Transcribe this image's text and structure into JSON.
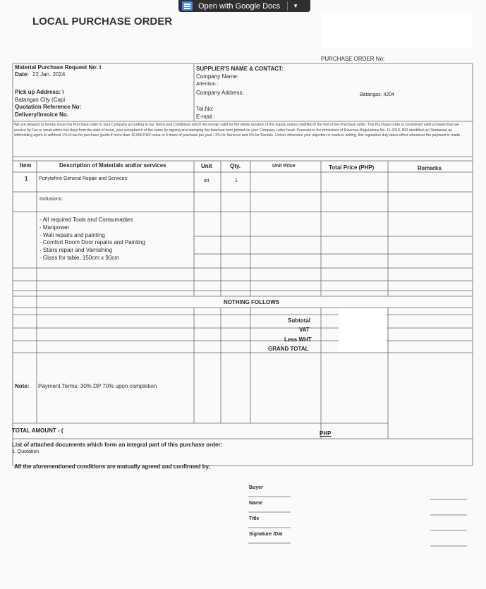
{
  "toolbar": {
    "open_with_label": "Open with Google Docs",
    "docs_icon": "google-docs-icon",
    "dropdown_icon": "caret-down-icon"
  },
  "document": {
    "title": "LOCAL PURCHASE ORDER",
    "po_no_label": "PURCHASE ORDER No:",
    "left": {
      "mpr_label": "Material Purchase Request No: I",
      "date_label": "Date:",
      "date_value": "22 Jan. 2024",
      "pickup_label": "Pick up Address: \\",
      "pickup_value": "Batangas City (Capi",
      "quotation_ref_label": "Quotation Reference No:",
      "delivery_label": "Delivery/Invoice No."
    },
    "supplier": {
      "heading": "SUPPLIER'S NAME & CONTACT:",
      "company_name": "Company Name:",
      "attention": "Attention :",
      "company_address": "Company Address:",
      "address_value": "Batangas, 4204",
      "tel": "Tel.No:",
      "email": "E-mail :"
    },
    "terms": "We are pleased to hereby issue this Purchase order to your Company according to our Terms and Conditions which will remain valid for the whole duration of the supply unless modified in the text of the Purchase order. This Purchase order is considered valid provided that we receive by Fax or email within two days from the date of issue, your acceptance of the same by signing and stamping the attached form printed on your Company Letter head. Pursuant to the provisions of Revenue Regulations No. 11-2018, BIR identified us (Ventanas) as withholding agent to withhold 1% of tax for purchase goods if more than 10,000 PHP value or 6 times of purchase per year / 2% for Services and 5% for Rentals. Unless otherwise your objection is made in writing, this regulation duly takes effect whenever the payment is made.",
    "table": {
      "headers": [
        "Item",
        "Description of Materials and/or services",
        "Unit",
        "Qty.",
        "Unit Price",
        "Total Price (PHP)",
        "Remarks"
      ],
      "row1": {
        "item": "1",
        "description": "Ponytefino General Repair and Services",
        "unit": "lot",
        "qty": "1"
      },
      "inclusions_label": "Inclusions:",
      "inclusions": [
        "- All required Tools and Consumables",
        "- Manpower",
        "- Wall repairs and painting",
        "- Comfort Room Door repairs and Painting",
        "- Stairs repair and Varnishing",
        "- Glass for table, 150cm x 90cm"
      ],
      "nothing_follows": "NOTHING FOLLOWS",
      "subtotal": "Subtotal",
      "vat": "VAT",
      "less_wht": "Less WHT",
      "grand_total": "GRAND TOTAL"
    },
    "note_label": "Note:",
    "note_value": "Payment Terms: 30% DP 70% upon completion",
    "total_amount_label": "TOTAL AMOUNT - (",
    "php_label": "PHP",
    "attached_heading": "List of attached documents which form an integral part of this purchase order:",
    "attached_items": [
      "1. Quotation"
    ],
    "agreement": "All the aforementioned conditions are mutually agreed and confirmed by;",
    "signature": {
      "buyer": "Buyer",
      "name": "Name",
      "title": "Title",
      "signature_date": "Signature /Dat"
    }
  }
}
